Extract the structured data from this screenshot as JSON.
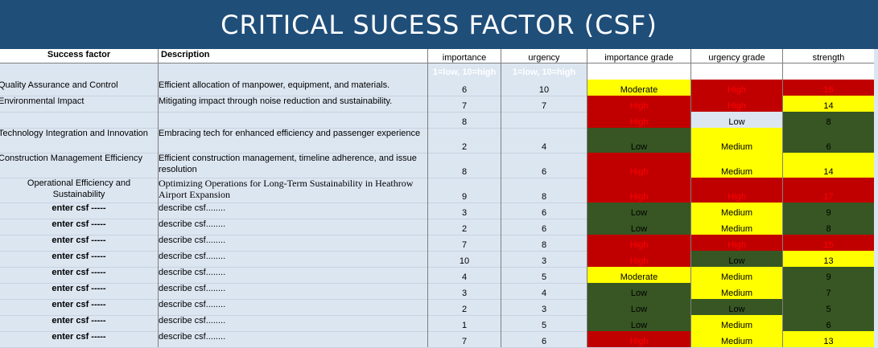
{
  "title": "CRITICAL SUCESS FACTOR (CSF)",
  "headers": {
    "success_factor": "Success factor",
    "description": "Description",
    "importance": "importance",
    "urgency": "urgency",
    "importance_grade": "importance grade",
    "urgency_grade": "urgency grade",
    "strength": "strength"
  },
  "scale_note": "1=low, 10=high",
  "colors": {
    "red": "#c00000",
    "yellow": "#ffff00",
    "green": "#375623",
    "header": "#1f4e79",
    "background": "#dce6f1"
  },
  "rows": [
    {
      "factor": "Quality Assurance and Control",
      "description": "Efficient allocation of manpower, equipment, and materials.",
      "importance": "6",
      "urgency": "10",
      "importance_grade": "Moderate",
      "urgency_grade": "High",
      "strength": "16"
    },
    {
      "factor": "Environmental Impact",
      "description": "Mitigating impact through noise reduction and sustainability.",
      "importance": "7",
      "urgency": "7",
      "importance_grade": "High",
      "urgency_grade": "High",
      "strength": "14"
    },
    {
      "factor": "",
      "description": "",
      "importance": "8",
      "urgency": "",
      "importance_grade": "High",
      "urgency_grade": "Low",
      "strength": "8"
    },
    {
      "factor": "Technology Integration and Innovation",
      "description": "Embracing tech for enhanced efficiency and passenger experience",
      "importance": "2",
      "urgency": "4",
      "importance_grade": "Low",
      "urgency_grade": "Medium",
      "strength": "6"
    },
    {
      "factor": "Construction Management Efficiency",
      "description": "Efficient construction management, timeline adherence, and issue resolution",
      "importance": "8",
      "urgency": "6",
      "importance_grade": "High",
      "urgency_grade": "Medium",
      "strength": "14"
    },
    {
      "factor": "Operational Efficiency and Sustainability",
      "description": "Optimizing Operations for Long-Term Sustainability in Heathrow Airport Expansion",
      "importance": "9",
      "urgency": "8",
      "importance_grade": "High",
      "urgency_grade": "High",
      "strength": "17"
    },
    {
      "factor": "enter csf -----",
      "description": "describe csf........",
      "importance": "3",
      "urgency": "6",
      "importance_grade": "Low",
      "urgency_grade": "Medium",
      "strength": "9"
    },
    {
      "factor": "enter csf -----",
      "description": "describe csf........",
      "importance": "2",
      "urgency": "6",
      "importance_grade": "Low",
      "urgency_grade": "Medium",
      "strength": "8"
    },
    {
      "factor": "enter csf -----",
      "description": "describe csf........",
      "importance": "7",
      "urgency": "8",
      "importance_grade": "High",
      "urgency_grade": "High",
      "strength": "15"
    },
    {
      "factor": "enter csf -----",
      "description": "describe csf........",
      "importance": "10",
      "urgency": "3",
      "importance_grade": "High",
      "urgency_grade": "Low",
      "strength": "13"
    },
    {
      "factor": "enter csf -----",
      "description": "describe csf........",
      "importance": "4",
      "urgency": "5",
      "importance_grade": "Moderate",
      "urgency_grade": "Medium",
      "strength": "9"
    },
    {
      "factor": "enter csf -----",
      "description": "describe csf........",
      "importance": "3",
      "urgency": "4",
      "importance_grade": "Low",
      "urgency_grade": "Medium",
      "strength": "7"
    },
    {
      "factor": "enter csf -----",
      "description": "describe csf........",
      "importance": "2",
      "urgency": "3",
      "importance_grade": "Low",
      "urgency_grade": "Low",
      "strength": "5"
    },
    {
      "factor": "enter csf -----",
      "description": "describe csf........",
      "importance": "1",
      "urgency": "5",
      "importance_grade": "Low",
      "urgency_grade": "Medium",
      "strength": "6"
    },
    {
      "factor": "enter csf -----",
      "description": "describe csf........",
      "importance": "7",
      "urgency": "6",
      "importance_grade": "High",
      "urgency_grade": "Medium",
      "strength": "13"
    }
  ]
}
